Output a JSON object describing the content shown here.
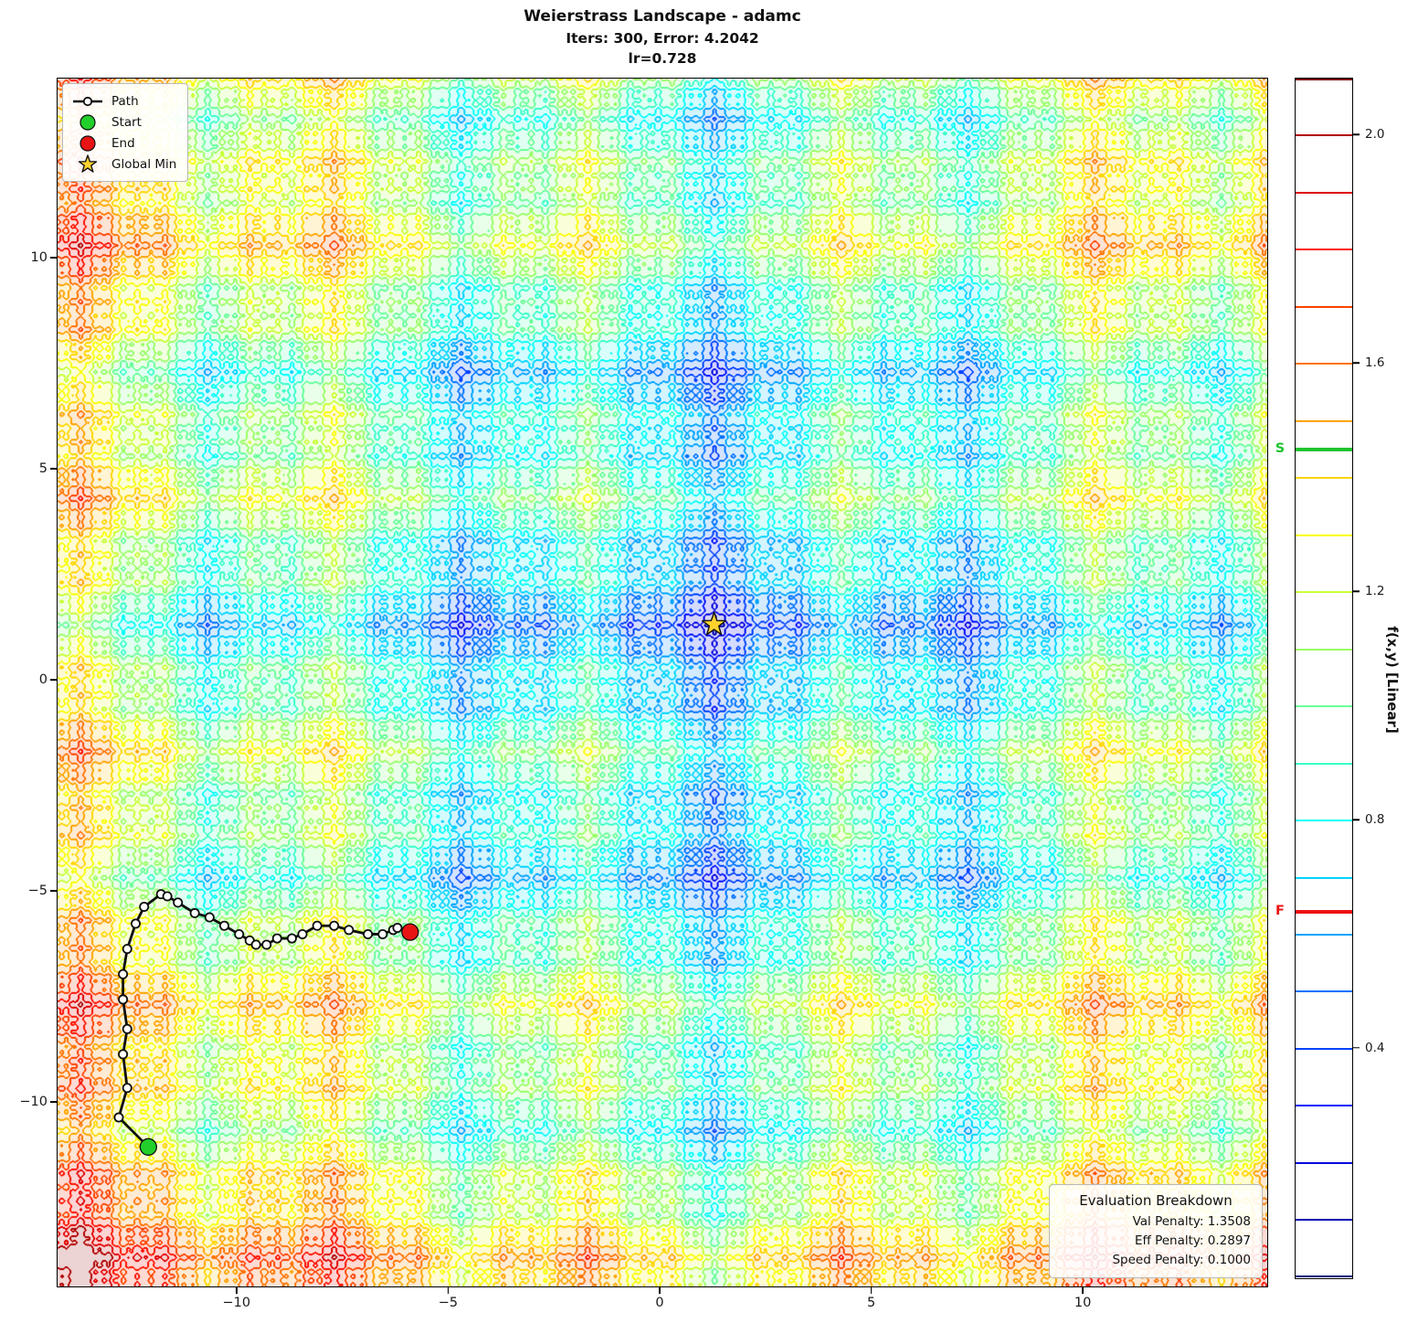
{
  "title": {
    "line1": "Weierstrass Landscape - adamc",
    "line2": "Iters: 300, Error: 4.2042",
    "line3": "lr=0.728"
  },
  "legend": {
    "path_label": "Path",
    "start_label": "Start",
    "end_label": "End",
    "global_min_label": "Global Min"
  },
  "eval_box": {
    "title": "Evaluation Breakdown",
    "lines": [
      "Val Penalty: 1.3508",
      "Eff Penalty: 0.2897",
      "Speed Penalty: 0.1000"
    ]
  },
  "axes": {
    "xlim": [
      -14.25,
      14.38
    ],
    "ylim": [
      -14.39,
      14.26
    ],
    "x_tick_values": [
      -10,
      -5,
      0,
      5,
      10
    ],
    "x_tick_labels": [
      "−10",
      "−5",
      "0",
      "5",
      "10"
    ],
    "y_tick_values": [
      -10,
      -5,
      0,
      5,
      10
    ],
    "y_tick_labels": [
      "−10",
      "−5",
      "0",
      "5",
      "10"
    ]
  },
  "colorbar": {
    "label": "f(x,y) [Linear]",
    "vmin": 0.0,
    "vmax": 2.1,
    "level_step": 0.1,
    "tick_values": [
      0.4,
      0.8,
      1.2,
      1.6,
      2.0
    ],
    "tick_labels": [
      "0.4",
      "0.8",
      "1.2",
      "1.6",
      "2.0"
    ],
    "start_marker": {
      "label": "S",
      "value": 1.45,
      "color": "#1fc32f"
    },
    "final_marker": {
      "label": "F",
      "value": 0.64,
      "color": "#ee1111"
    }
  },
  "colors": {
    "path_line": "#0d0d0d",
    "node_fill": "#ffffff",
    "node_edge": "#0d0d0d",
    "start_fill": "#22cf2b",
    "end_fill": "#e81414",
    "star_fill": "#ffd22e",
    "star_edge": "#111111",
    "fill_whiteness": 0.83
  },
  "chart_data": {
    "type": "contour",
    "title": "Weierstrass Landscape - adamc",
    "subtitle": "Iters: 300, Error: 4.2042, lr=0.728",
    "colormap": "jet",
    "levels": {
      "min": 0.0,
      "max": 2.1,
      "step": 0.1
    },
    "xlim": [
      -14.25,
      14.38
    ],
    "ylim": [
      -14.39,
      14.26
    ],
    "surface": {
      "model": "separable Weierstrass-like fractal landscape f(x,y)=g(x-cx)+g(y-cy)",
      "center": [
        1.3,
        1.3
      ],
      "octaves": 4,
      "octave_base_period": 6,
      "octave_frequency_ratio": 3,
      "octave_amplitude_decay": 0.55,
      "fractal_weight": 0.62,
      "bowl_weight": 0.55,
      "bowl_radius": 15.7,
      "bowl_power": 1.3
    },
    "global_min": [
      1.3,
      1.3
    ],
    "start": [
      -12.1,
      -11.1
    ],
    "end": [
      -5.9,
      -6.0
    ],
    "start_value": 1.45,
    "final_value": 0.64,
    "path": [
      [
        -12.1,
        -11.1
      ],
      [
        -12.8,
        -10.4
      ],
      [
        -12.6,
        -9.7
      ],
      [
        -12.7,
        -8.9
      ],
      [
        -12.6,
        -8.3
      ],
      [
        -12.7,
        -7.6
      ],
      [
        -12.7,
        -7.0
      ],
      [
        -12.6,
        -6.4
      ],
      [
        -12.4,
        -5.8
      ],
      [
        -12.2,
        -5.4
      ],
      [
        -11.8,
        -5.1
      ],
      [
        -11.65,
        -5.15
      ],
      [
        -11.4,
        -5.3
      ],
      [
        -11.0,
        -5.55
      ],
      [
        -10.65,
        -5.65
      ],
      [
        -10.3,
        -5.85
      ],
      [
        -9.95,
        -6.05
      ],
      [
        -9.7,
        -6.2
      ],
      [
        -9.55,
        -6.3
      ],
      [
        -9.3,
        -6.3
      ],
      [
        -9.05,
        -6.15
      ],
      [
        -8.7,
        -6.15
      ],
      [
        -8.45,
        -6.05
      ],
      [
        -8.1,
        -5.85
      ],
      [
        -7.7,
        -5.85
      ],
      [
        -7.35,
        -5.95
      ],
      [
        -6.9,
        -6.05
      ],
      [
        -6.55,
        -6.05
      ],
      [
        -6.3,
        -5.95
      ],
      [
        -6.2,
        -5.9
      ],
      [
        -5.9,
        -6.0
      ]
    ]
  }
}
